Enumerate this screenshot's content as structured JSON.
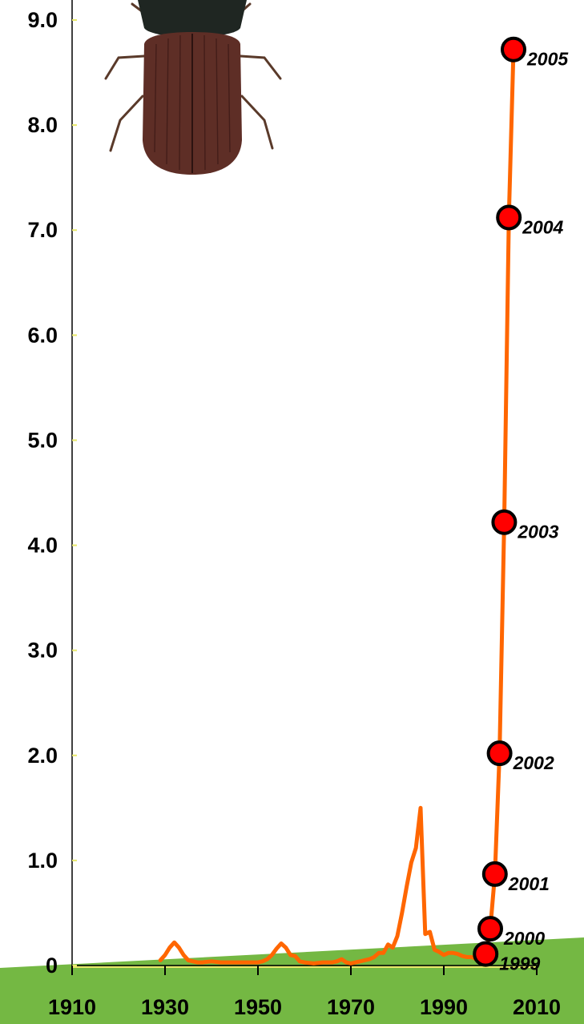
{
  "chart_data": {
    "type": "line",
    "title": "",
    "xlabel": "",
    "ylabel": "",
    "xlim": [
      1910,
      2010
    ],
    "ylim": [
      0,
      9.0
    ],
    "grid": false,
    "y_ticks": [
      {
        "value": 0,
        "label": "0"
      },
      {
        "value": 1,
        "label": "1.0"
      },
      {
        "value": 2,
        "label": "2.0"
      },
      {
        "value": 3,
        "label": "3.0"
      },
      {
        "value": 4,
        "label": "4.0"
      },
      {
        "value": 5,
        "label": "5.0"
      },
      {
        "value": 6,
        "label": "6.0"
      },
      {
        "value": 7,
        "label": "7.0"
      },
      {
        "value": 8,
        "label": "8.0"
      },
      {
        "value": 9,
        "label": "9.0"
      }
    ],
    "x_ticks": [
      {
        "value": 1910,
        "label": "1910"
      },
      {
        "value": 1930,
        "label": "1930"
      },
      {
        "value": 1950,
        "label": "1950"
      },
      {
        "value": 1970,
        "label": "1970"
      },
      {
        "value": 1990,
        "label": "1990"
      },
      {
        "value": 2010,
        "label": "2010"
      }
    ],
    "series": [
      {
        "color": "#ff6600",
        "x": [
          1929,
          1930,
          1931,
          1932,
          1933,
          1934,
          1935,
          1936,
          1937,
          1938,
          1940,
          1942,
          1944,
          1946,
          1948,
          1950,
          1951,
          1952,
          1953,
          1954,
          1955,
          1956,
          1957,
          1958,
          1959,
          1960,
          1962,
          1964,
          1966,
          1967,
          1968,
          1969,
          1970,
          1971,
          1972,
          1973,
          1974,
          1975,
          1976,
          1977,
          1978,
          1979,
          1980,
          1981,
          1982,
          1983,
          1984,
          1985,
          1986,
          1987,
          1988,
          1989,
          1990,
          1991,
          1992,
          1993,
          1994,
          1995,
          1996,
          1997,
          1998,
          1999,
          2000,
          2001,
          2002,
          2003,
          2004,
          2005
        ],
        "y": [
          0.05,
          0.1,
          0.17,
          0.22,
          0.17,
          0.1,
          0.05,
          0.04,
          0.03,
          0.03,
          0.04,
          0.03,
          0.03,
          0.03,
          0.03,
          0.03,
          0.04,
          0.06,
          0.1,
          0.16,
          0.21,
          0.17,
          0.1,
          0.09,
          0.04,
          0.03,
          0.02,
          0.03,
          0.03,
          0.04,
          0.06,
          0.03,
          0.02,
          0.03,
          0.04,
          0.05,
          0.06,
          0.08,
          0.12,
          0.12,
          0.2,
          0.17,
          0.28,
          0.5,
          0.75,
          0.98,
          1.12,
          1.5,
          0.3,
          0.32,
          0.15,
          0.13,
          0.1,
          0.12,
          0.12,
          0.11,
          0.09,
          0.08,
          0.08,
          0.06,
          0.1,
          0.11,
          0.35,
          0.87,
          2.02,
          4.22,
          7.12,
          8.72
        ]
      }
    ],
    "highlighted_points": [
      {
        "year": 1999,
        "value": 0.11,
        "label": "1999"
      },
      {
        "year": 2000,
        "value": 0.35,
        "label": "2000"
      },
      {
        "year": 2001,
        "value": 0.87,
        "label": "2001"
      },
      {
        "year": 2002,
        "value": 2.02,
        "label": "2002"
      },
      {
        "year": 2003,
        "value": 4.22,
        "label": "2003"
      },
      {
        "year": 2004,
        "value": 7.12,
        "label": "2004"
      },
      {
        "year": 2005,
        "value": 8.72,
        "label": "2005"
      }
    ],
    "image": {
      "name": "beetle-illustration"
    }
  }
}
